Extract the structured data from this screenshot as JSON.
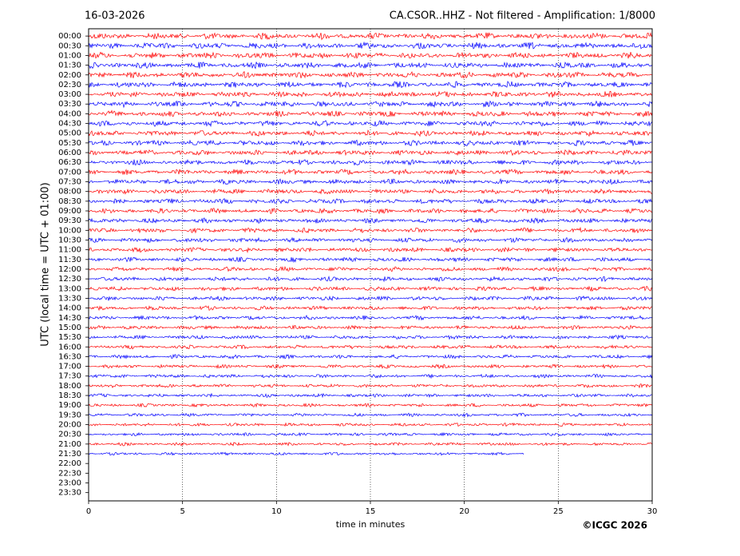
{
  "chart_data": {
    "type": "helicorder",
    "date": "16-03-2026",
    "title": "CA.CSOR..HHZ - Not filtered - Amplification: 1/8000",
    "x_label": "time in minutes",
    "y_label": "UTC (local time = UTC + 01:00)",
    "credit": "©ICGC 2026",
    "xlim": [
      0,
      30
    ],
    "xticks": [
      0,
      5,
      10,
      15,
      20,
      25,
      30
    ],
    "grid": true,
    "colors": [
      "#ff0000",
      "#0000ff"
    ],
    "categories": [
      "00:00",
      "00:30",
      "01:00",
      "01:30",
      "02:00",
      "02:30",
      "03:00",
      "03:30",
      "04:00",
      "04:30",
      "05:00",
      "05:30",
      "06:00",
      "06:30",
      "07:00",
      "07:30",
      "08:00",
      "08:30",
      "09:00",
      "09:30",
      "10:00",
      "10:30",
      "11:00",
      "11:30",
      "12:00",
      "12:30",
      "13:00",
      "13:30",
      "14:00",
      "14:30",
      "15:00",
      "15:30",
      "16:00",
      "16:30",
      "17:00",
      "17:30",
      "18:00",
      "18:30",
      "19:00",
      "19:30",
      "20:00",
      "20:30",
      "21:00",
      "21:30",
      "22:00",
      "22:30",
      "23:00",
      "23:30"
    ],
    "values": [
      30,
      30,
      30,
      30,
      30,
      30,
      30,
      30,
      30,
      30,
      30,
      30,
      30,
      30,
      30,
      30,
      30,
      30,
      30,
      30,
      30,
      30,
      30,
      30,
      30,
      30,
      30,
      30,
      30,
      30,
      30,
      30,
      30,
      30,
      30,
      30,
      30,
      30,
      30,
      30,
      30,
      30,
      30,
      23.2,
      null,
      null,
      null,
      null
    ]
  }
}
